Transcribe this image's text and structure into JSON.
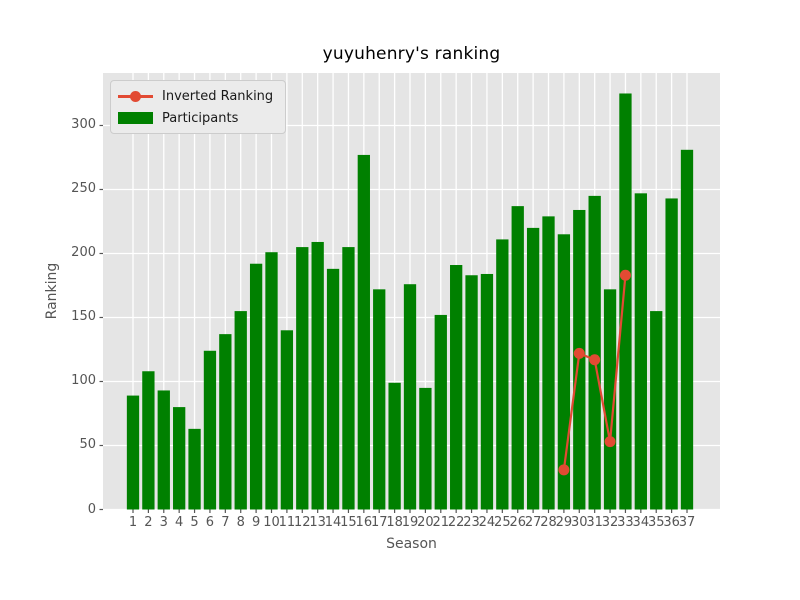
{
  "title": "yuyuhenry's ranking",
  "colors": {
    "figure_background": "#ffffff",
    "axes_background": "#e5e5e5",
    "grid": "#ffffff",
    "bar": "#008000",
    "line": "#e24a33",
    "tick_text": "#555555",
    "title_text": "#000000",
    "legend_background": "#ebebeb",
    "legend_border": "#cccccc"
  },
  "legend": {
    "items": [
      {
        "label": "Inverted Ranking",
        "type": "line-marker",
        "color": "#e24a33"
      },
      {
        "label": "Participants",
        "type": "patch",
        "color": "#008000"
      }
    ]
  },
  "chart_data": {
    "type": "bar",
    "title": "yuyuhenry's ranking",
    "xlabel": "Season",
    "ylabel": "Ranking",
    "categories": [
      1,
      2,
      3,
      4,
      5,
      6,
      7,
      8,
      9,
      10,
      11,
      12,
      13,
      14,
      15,
      16,
      17,
      18,
      19,
      20,
      21,
      22,
      23,
      24,
      25,
      26,
      27,
      28,
      29,
      30,
      31,
      32,
      33,
      34,
      35,
      36,
      37
    ],
    "series": [
      {
        "name": "Participants",
        "type": "bar",
        "color": "#008000",
        "values": [
          89,
          108,
          93,
          80,
          63,
          124,
          137,
          155,
          192,
          201,
          140,
          205,
          209,
          188,
          205,
          277,
          172,
          99,
          176,
          95,
          152,
          191,
          183,
          184,
          211,
          237,
          220,
          229,
          215,
          234,
          245,
          172,
          325,
          247,
          155,
          243,
          281
        ]
      },
      {
        "name": "Inverted Ranking",
        "type": "line",
        "color": "#e24a33",
        "x": [
          29,
          30,
          31,
          32,
          33
        ],
        "values": [
          31,
          122,
          117,
          53,
          183
        ]
      }
    ],
    "ylim": [
      0,
      341
    ],
    "yticks": [
      0,
      50,
      100,
      150,
      200,
      250,
      300
    ],
    "grid": true,
    "legend_position": "upper left"
  }
}
